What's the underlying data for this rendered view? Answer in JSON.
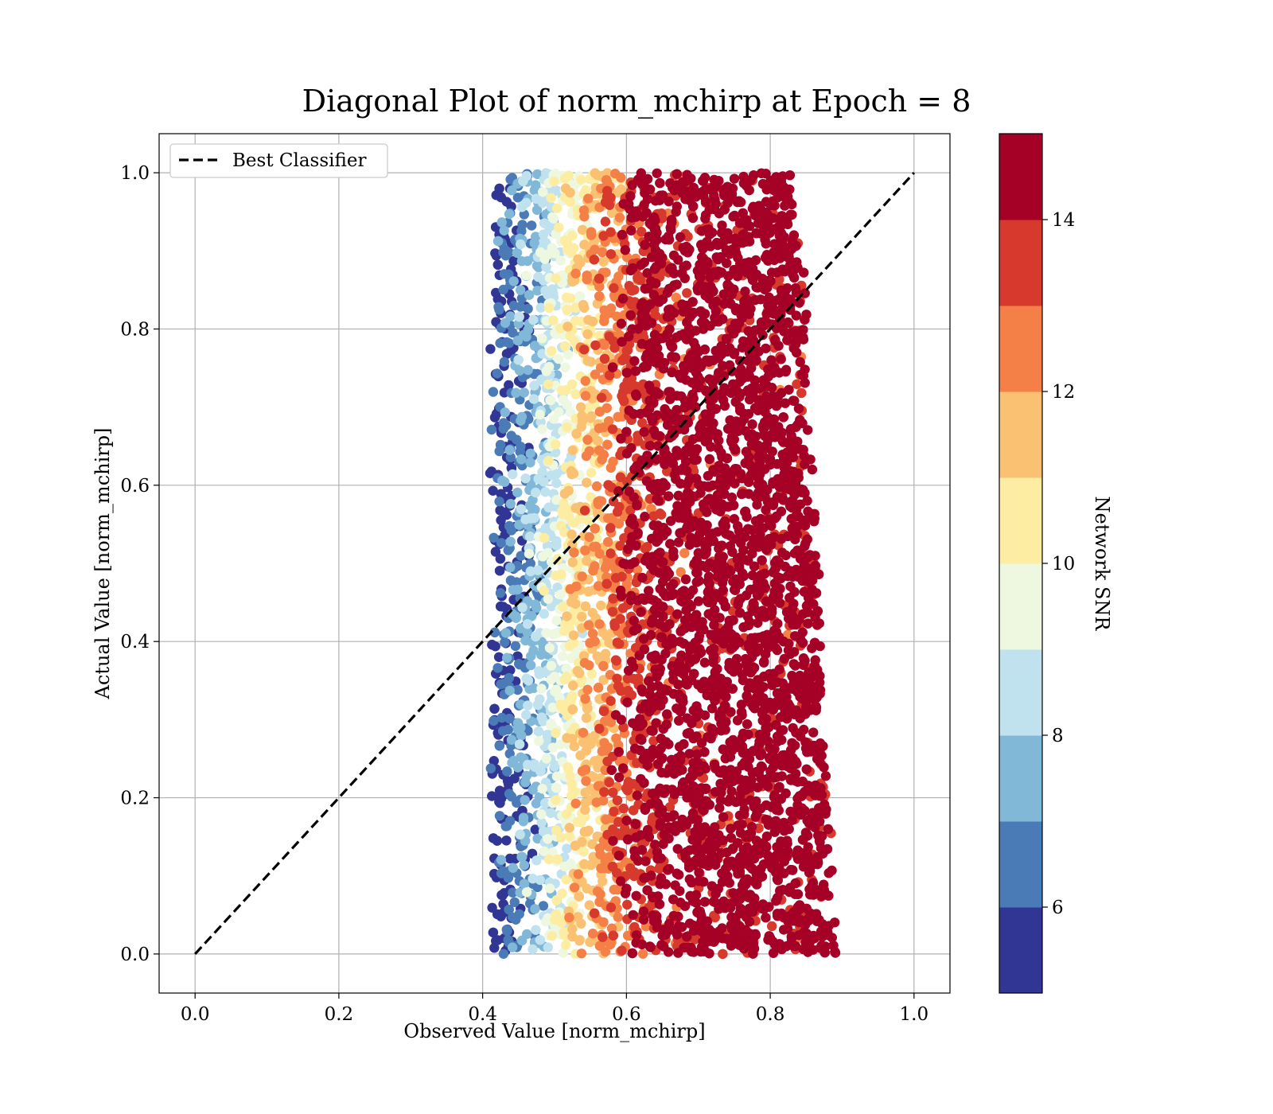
{
  "chart_data": {
    "type": "scatter",
    "title": "Diagonal Plot of norm_mchirp at Epoch = 8",
    "xlabel": "Observed Value [norm_mchirp]",
    "ylabel": "Actual Value [norm_mchirp]",
    "xlim": [
      -0.05,
      1.05
    ],
    "ylim": [
      -0.05,
      1.05
    ],
    "x_ticks": [
      "0.0",
      "0.2",
      "0.4",
      "0.6",
      "0.8",
      "1.0"
    ],
    "y_ticks": [
      "0.0",
      "0.2",
      "0.4",
      "0.6",
      "0.8",
      "1.0"
    ],
    "grid": true,
    "legend": {
      "position": "upper-left",
      "entries": [
        "Best Classifier"
      ]
    },
    "reference_line": {
      "name": "Best Classifier",
      "style": "dashed",
      "color": "#000000",
      "x": [
        0.0,
        1.0
      ],
      "y": [
        0.0,
        1.0
      ]
    },
    "colorbar": {
      "label": "Network SNR",
      "range": [
        5,
        15
      ],
      "tick_labels": [
        "6",
        "8",
        "10",
        "12",
        "14"
      ],
      "tick_values": [
        6,
        8,
        10,
        12,
        14
      ],
      "levels": [
        5,
        6,
        7,
        8,
        9,
        10,
        11,
        12,
        13,
        14,
        15
      ],
      "colors": [
        "#313695",
        "#4a7bb7",
        "#82b8d7",
        "#c0e2ee",
        "#eef7df",
        "#fdeda3",
        "#fbc173",
        "#f58047",
        "#d73a2c",
        "#a50026"
      ]
    },
    "scatter_cloud": {
      "description_of_bounds": "points span observed 0.40-0.89 and actual 0.0-1.0; SNR increases with observed value",
      "x_range": [
        0.4,
        0.89
      ],
      "y_range": [
        0.0,
        1.0
      ],
      "snr_trend": [
        {
          "x": 0.42,
          "snr": 5.5
        },
        {
          "x": 0.46,
          "snr": 7.0
        },
        {
          "x": 0.5,
          "snr": 9.0
        },
        {
          "x": 0.54,
          "snr": 11.0
        },
        {
          "x": 0.58,
          "snr": 12.5
        },
        {
          "x": 0.62,
          "snr": 14.0
        },
        {
          "x": 0.68,
          "snr": 14.8
        },
        {
          "x": 0.8,
          "snr": 15.0
        }
      ]
    }
  }
}
